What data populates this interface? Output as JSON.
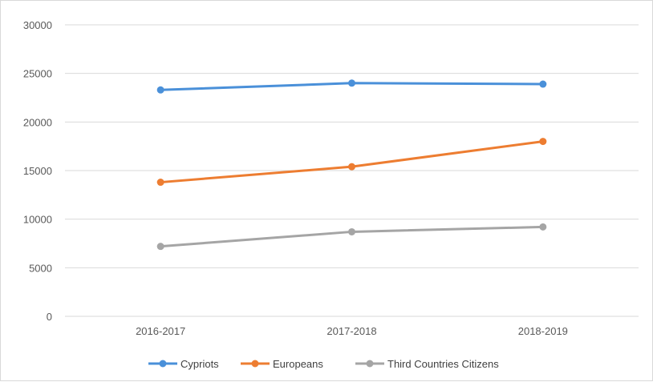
{
  "chart_data": {
    "type": "line",
    "title": "",
    "xlabel": "",
    "ylabel": "",
    "categories": [
      "2016-2017",
      "2017-2018",
      "2018-2019"
    ],
    "ylim": [
      0,
      30000
    ],
    "yticks": [
      0,
      5000,
      10000,
      15000,
      20000,
      25000,
      30000
    ],
    "grid": true,
    "legend_position": "bottom",
    "series": [
      {
        "name": "Cypriots",
        "values": [
          23300,
          24000,
          23900
        ],
        "color": "#4a90d9"
      },
      {
        "name": "Europeans",
        "values": [
          13800,
          15400,
          18000
        ],
        "color": "#ed7d31"
      },
      {
        "name": "Third Countries Citizens",
        "values": [
          7200,
          8700,
          9200
        ],
        "color": "#a5a5a5"
      }
    ]
  }
}
